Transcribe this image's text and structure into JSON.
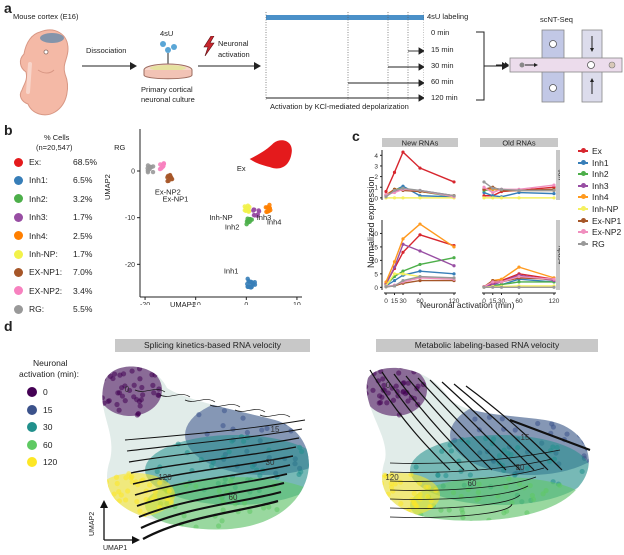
{
  "panel_a": {
    "label": "a",
    "embryo_label": "Mouse cortex (E16)",
    "step1_label": "Dissociation",
    "reagent_label": "4sU",
    "culture_label_line1": "Primary cortical",
    "culture_label_line2": "neuronal culture",
    "step2_label_line1": "Neuronal",
    "step2_label_line2": "activation",
    "labeling_label": "4sU labeling",
    "timepoints": [
      "0 min",
      "15 min",
      "30 min",
      "60 min",
      "120 min"
    ],
    "timeline_caption": "Activation by KCl-mediated depolarization",
    "method_label": "scNT-Seq",
    "colors": {
      "labeling_bar": "#4a90c8",
      "embryo": "#f4b9a6",
      "cortex": "#8494aa",
      "lightning": "#c8262e"
    }
  },
  "panel_b": {
    "label": "b",
    "legend_title_line1": "% Cells",
    "legend_title_line2": "(n=20,547)",
    "legend": [
      {
        "name": "Ex:",
        "pct": "68.5%",
        "color": "#e41a1c"
      },
      {
        "name": "Inh1:",
        "pct": "6.5%",
        "color": "#377eb8"
      },
      {
        "name": "Inh2:",
        "pct": "3.2%",
        "color": "#4daf4a"
      },
      {
        "name": "Inh3:",
        "pct": "1.7%",
        "color": "#984ea3"
      },
      {
        "name": "Inh4:",
        "pct": "2.5%",
        "color": "#ff7f00"
      },
      {
        "name": "Inh-NP:",
        "pct": "1.7%",
        "color": "#f2f24a"
      },
      {
        "name": "EX-NP1:",
        "pct": "7.0%",
        "color": "#a65628"
      },
      {
        "name": "EX-NP2:",
        "pct": "3.4%",
        "color": "#f781bf"
      },
      {
        "name": "RG:",
        "pct": "5.5%",
        "color": "#999999"
      }
    ]
  },
  "panel_c": {
    "label": "c"
  },
  "panel_d": {
    "label": "d",
    "legend_title_line1": "Neuronal",
    "legend_title_line2": "activation (min):",
    "legend": [
      {
        "name": "0",
        "color": "#440154"
      },
      {
        "name": "15",
        "color": "#3b528b"
      },
      {
        "name": "30",
        "color": "#21908c"
      },
      {
        "name": "60",
        "color": "#5ec962"
      },
      {
        "name": "120",
        "color": "#fde725"
      }
    ],
    "axis_x": "UMAP1",
    "axis_y": "UMAP2",
    "plots": [
      {
        "title": "Splicing kinetics-based RNA velocity",
        "annotations": [
          "0",
          "15",
          "30",
          "60",
          "120"
        ]
      },
      {
        "title": "Metabolic labeling-based RNA velocity",
        "annotations": [
          "0",
          "15",
          "30",
          "60",
          "120"
        ]
      }
    ]
  },
  "chart_data": [
    {
      "type": "scatter",
      "title": "",
      "xlabel": "UMAP1",
      "ylabel": "UMAP2",
      "xlim": [
        -21,
        11
      ],
      "ylim": [
        -27,
        9
      ],
      "xticks": [
        -20,
        -10,
        0,
        10
      ],
      "yticks": [
        -20,
        -10,
        0
      ],
      "clusters": [
        {
          "name": "Ex",
          "center": [
            5,
            3
          ],
          "color": "#e41a1c"
        },
        {
          "name": "Ex-NP2",
          "center": [
            -16.5,
            1
          ],
          "color": "#f781bf"
        },
        {
          "name": "RG",
          "center": [
            -19,
            0.5
          ],
          "color": "#999999"
        },
        {
          "name": "Ex-NP1",
          "center": [
            -15,
            -1.5
          ],
          "color": "#a65628"
        },
        {
          "name": "Inh-NP",
          "center": [
            0,
            -8
          ],
          "color": "#f2f24a"
        },
        {
          "name": "Inh4",
          "center": [
            4.5,
            -8
          ],
          "color": "#ff7f00"
        },
        {
          "name": "Inh3",
          "center": [
            2,
            -9
          ],
          "color": "#984ea3"
        },
        {
          "name": "Inh2",
          "center": [
            0.7,
            -11
          ],
          "color": "#4daf4a"
        },
        {
          "name": "Inh1",
          "center": [
            1,
            -24
          ],
          "color": "#377eb8"
        }
      ]
    },
    {
      "type": "line",
      "title": "",
      "xlabel": "Neuronal activation (min)",
      "ylabel": "Normalized expression",
      "x": [
        0,
        15,
        30,
        60,
        120
      ],
      "xticks": [
        "0",
        "15",
        "30",
        "60",
        "120"
      ],
      "column_facets": [
        "New RNAs",
        "Old RNAs"
      ],
      "row_facets": [
        "Jun",
        "Npas4"
      ],
      "legend": [
        "Ex",
        "Inh1",
        "Inh2",
        "Inh3",
        "Inh4",
        "Inh-NP",
        "Ex-NP1",
        "Ex-NP2",
        "RG"
      ],
      "legend_position": "right",
      "colors": {
        "Ex": "#d7262e",
        "Inh1": "#377eb8",
        "Inh2": "#4daf4a",
        "Inh3": "#984ea3",
        "Inh4": "#ff9a1f",
        "Inh-NP": "#f5f060",
        "Ex-NP1": "#a65628",
        "Ex-NP2": "#f08fbf",
        "RG": "#999999"
      },
      "panels": [
        {
          "row": "Jun",
          "col": "New RNAs",
          "ylim": [
            -0.2,
            4.5
          ],
          "yticks": [
            0,
            1,
            2,
            3,
            4
          ],
          "series": [
            {
              "name": "Ex",
              "values": [
                0.6,
                2.4,
                4.3,
                2.8,
                1.5
              ]
            },
            {
              "name": "Inh1",
              "values": [
                0.3,
                0.7,
                1.1,
                0.2,
                0.1
              ]
            },
            {
              "name": "Inh2",
              "values": [
                0.2,
                0.8,
                0.9,
                0.6,
                0.1
              ]
            },
            {
              "name": "Inh3",
              "values": [
                0.2,
                0.6,
                0.8,
                0.7,
                0.2
              ]
            },
            {
              "name": "Inh4",
              "values": [
                0.3,
                0.8,
                0.8,
                0.6,
                0.2
              ]
            },
            {
              "name": "Inh-NP",
              "values": [
                0.0,
                0.0,
                0.0,
                0.0,
                0.0
              ]
            },
            {
              "name": "Ex-NP1",
              "values": [
                0.2,
                0.8,
                0.7,
                0.6,
                0.2
              ]
            },
            {
              "name": "Ex-NP2",
              "values": [
                0.3,
                0.5,
                0.8,
                0.7,
                0.1
              ]
            },
            {
              "name": "RG",
              "values": [
                0.1,
                0.7,
                0.9,
                0.7,
                0.2
              ]
            }
          ]
        },
        {
          "row": "Jun",
          "col": "Old RNAs",
          "ylim": [
            -0.2,
            4.5
          ],
          "yticks": [
            0,
            1,
            2,
            3,
            4
          ],
          "series": [
            {
              "name": "Ex",
              "values": [
                0.2,
                0.2,
                0.6,
                0.7,
                1.0
              ]
            },
            {
              "name": "Inh1",
              "values": [
                0.5,
                0.2,
                0.1,
                0.5,
                0.4
              ]
            },
            {
              "name": "Inh2",
              "values": [
                0.7,
                0.8,
                0.7,
                0.7,
                0.7
              ]
            },
            {
              "name": "Inh3",
              "values": [
                0.8,
                0.9,
                0.8,
                0.7,
                0.7
              ]
            },
            {
              "name": "Inh4",
              "values": [
                0.8,
                0.8,
                0.7,
                0.7,
                0.7
              ]
            },
            {
              "name": "Inh-NP",
              "values": [
                0.0,
                0.0,
                0.0,
                0.0,
                0.0
              ]
            },
            {
              "name": "Ex-NP1",
              "values": [
                0.8,
                1.0,
                0.7,
                0.7,
                0.8
              ]
            },
            {
              "name": "Ex-NP2",
              "values": [
                1.0,
                0.5,
                0.8,
                0.8,
                1.2
              ]
            },
            {
              "name": "RG",
              "values": [
                1.5,
                0.9,
                0.8,
                0.7,
                0.7
              ]
            }
          ]
        },
        {
          "row": "Npas4",
          "col": "New RNAs",
          "ylim": [
            -1,
            25
          ],
          "yticks": [
            0,
            5,
            10,
            15,
            20
          ],
          "series": [
            {
              "name": "Ex",
              "values": [
                1.5,
                7.0,
                13.0,
                19.5,
                15.5
              ]
            },
            {
              "name": "Inh1",
              "values": [
                0.5,
                2.5,
                4.5,
                6.0,
                5.0
              ]
            },
            {
              "name": "Inh2",
              "values": [
                0.8,
                4.0,
                6.0,
                8.5,
                11.0
              ]
            },
            {
              "name": "Inh3",
              "values": [
                1.0,
                7.5,
                16.0,
                13.5,
                8.0
              ]
            },
            {
              "name": "Inh4",
              "values": [
                2.0,
                9.5,
                18.0,
                23.5,
                15.0
              ]
            },
            {
              "name": "Inh-NP",
              "values": [
                0.5,
                5.0,
                5.0,
                4.0,
                3.0
              ]
            },
            {
              "name": "Ex-NP1",
              "values": [
                0.2,
                0.5,
                1.5,
                2.5,
                2.5
              ]
            },
            {
              "name": "Ex-NP2",
              "values": [
                0.3,
                0.8,
                2.0,
                3.5,
                3.0
              ]
            },
            {
              "name": "RG",
              "values": [
                0.2,
                0.5,
                2.5,
                4.0,
                3.5
              ]
            }
          ]
        },
        {
          "row": "Npas4",
          "col": "Old RNAs",
          "ylim": [
            -1,
            25
          ],
          "yticks": [
            0,
            5,
            10,
            15,
            20
          ],
          "series": [
            {
              "name": "Ex",
              "values": [
                0.2,
                1.5,
                2.5,
                5.0,
                3.0
              ]
            },
            {
              "name": "Inh1",
              "values": [
                0.2,
                0.8,
                1.0,
                3.0,
                2.0
              ]
            },
            {
              "name": "Inh2",
              "values": [
                0.2,
                0.5,
                1.0,
                2.0,
                2.0
              ]
            },
            {
              "name": "Inh3",
              "values": [
                0.2,
                1.0,
                2.0,
                4.5,
                2.5
              ]
            },
            {
              "name": "Inh4",
              "values": [
                0.2,
                2.5,
                3.0,
                7.5,
                3.5
              ]
            },
            {
              "name": "Inh-NP",
              "values": [
                0.0,
                0.3,
                0.3,
                0.5,
                0.5
              ]
            },
            {
              "name": "Ex-NP1",
              "values": [
                0.2,
                2.5,
                2.0,
                3.5,
                3.0
              ]
            },
            {
              "name": "Ex-NP2",
              "values": [
                0.2,
                2.0,
                2.0,
                4.0,
                3.0
              ]
            },
            {
              "name": "RG",
              "values": [
                0.0,
                0.0,
                0.0,
                0.0,
                0.0
              ]
            }
          ]
        }
      ]
    }
  ]
}
